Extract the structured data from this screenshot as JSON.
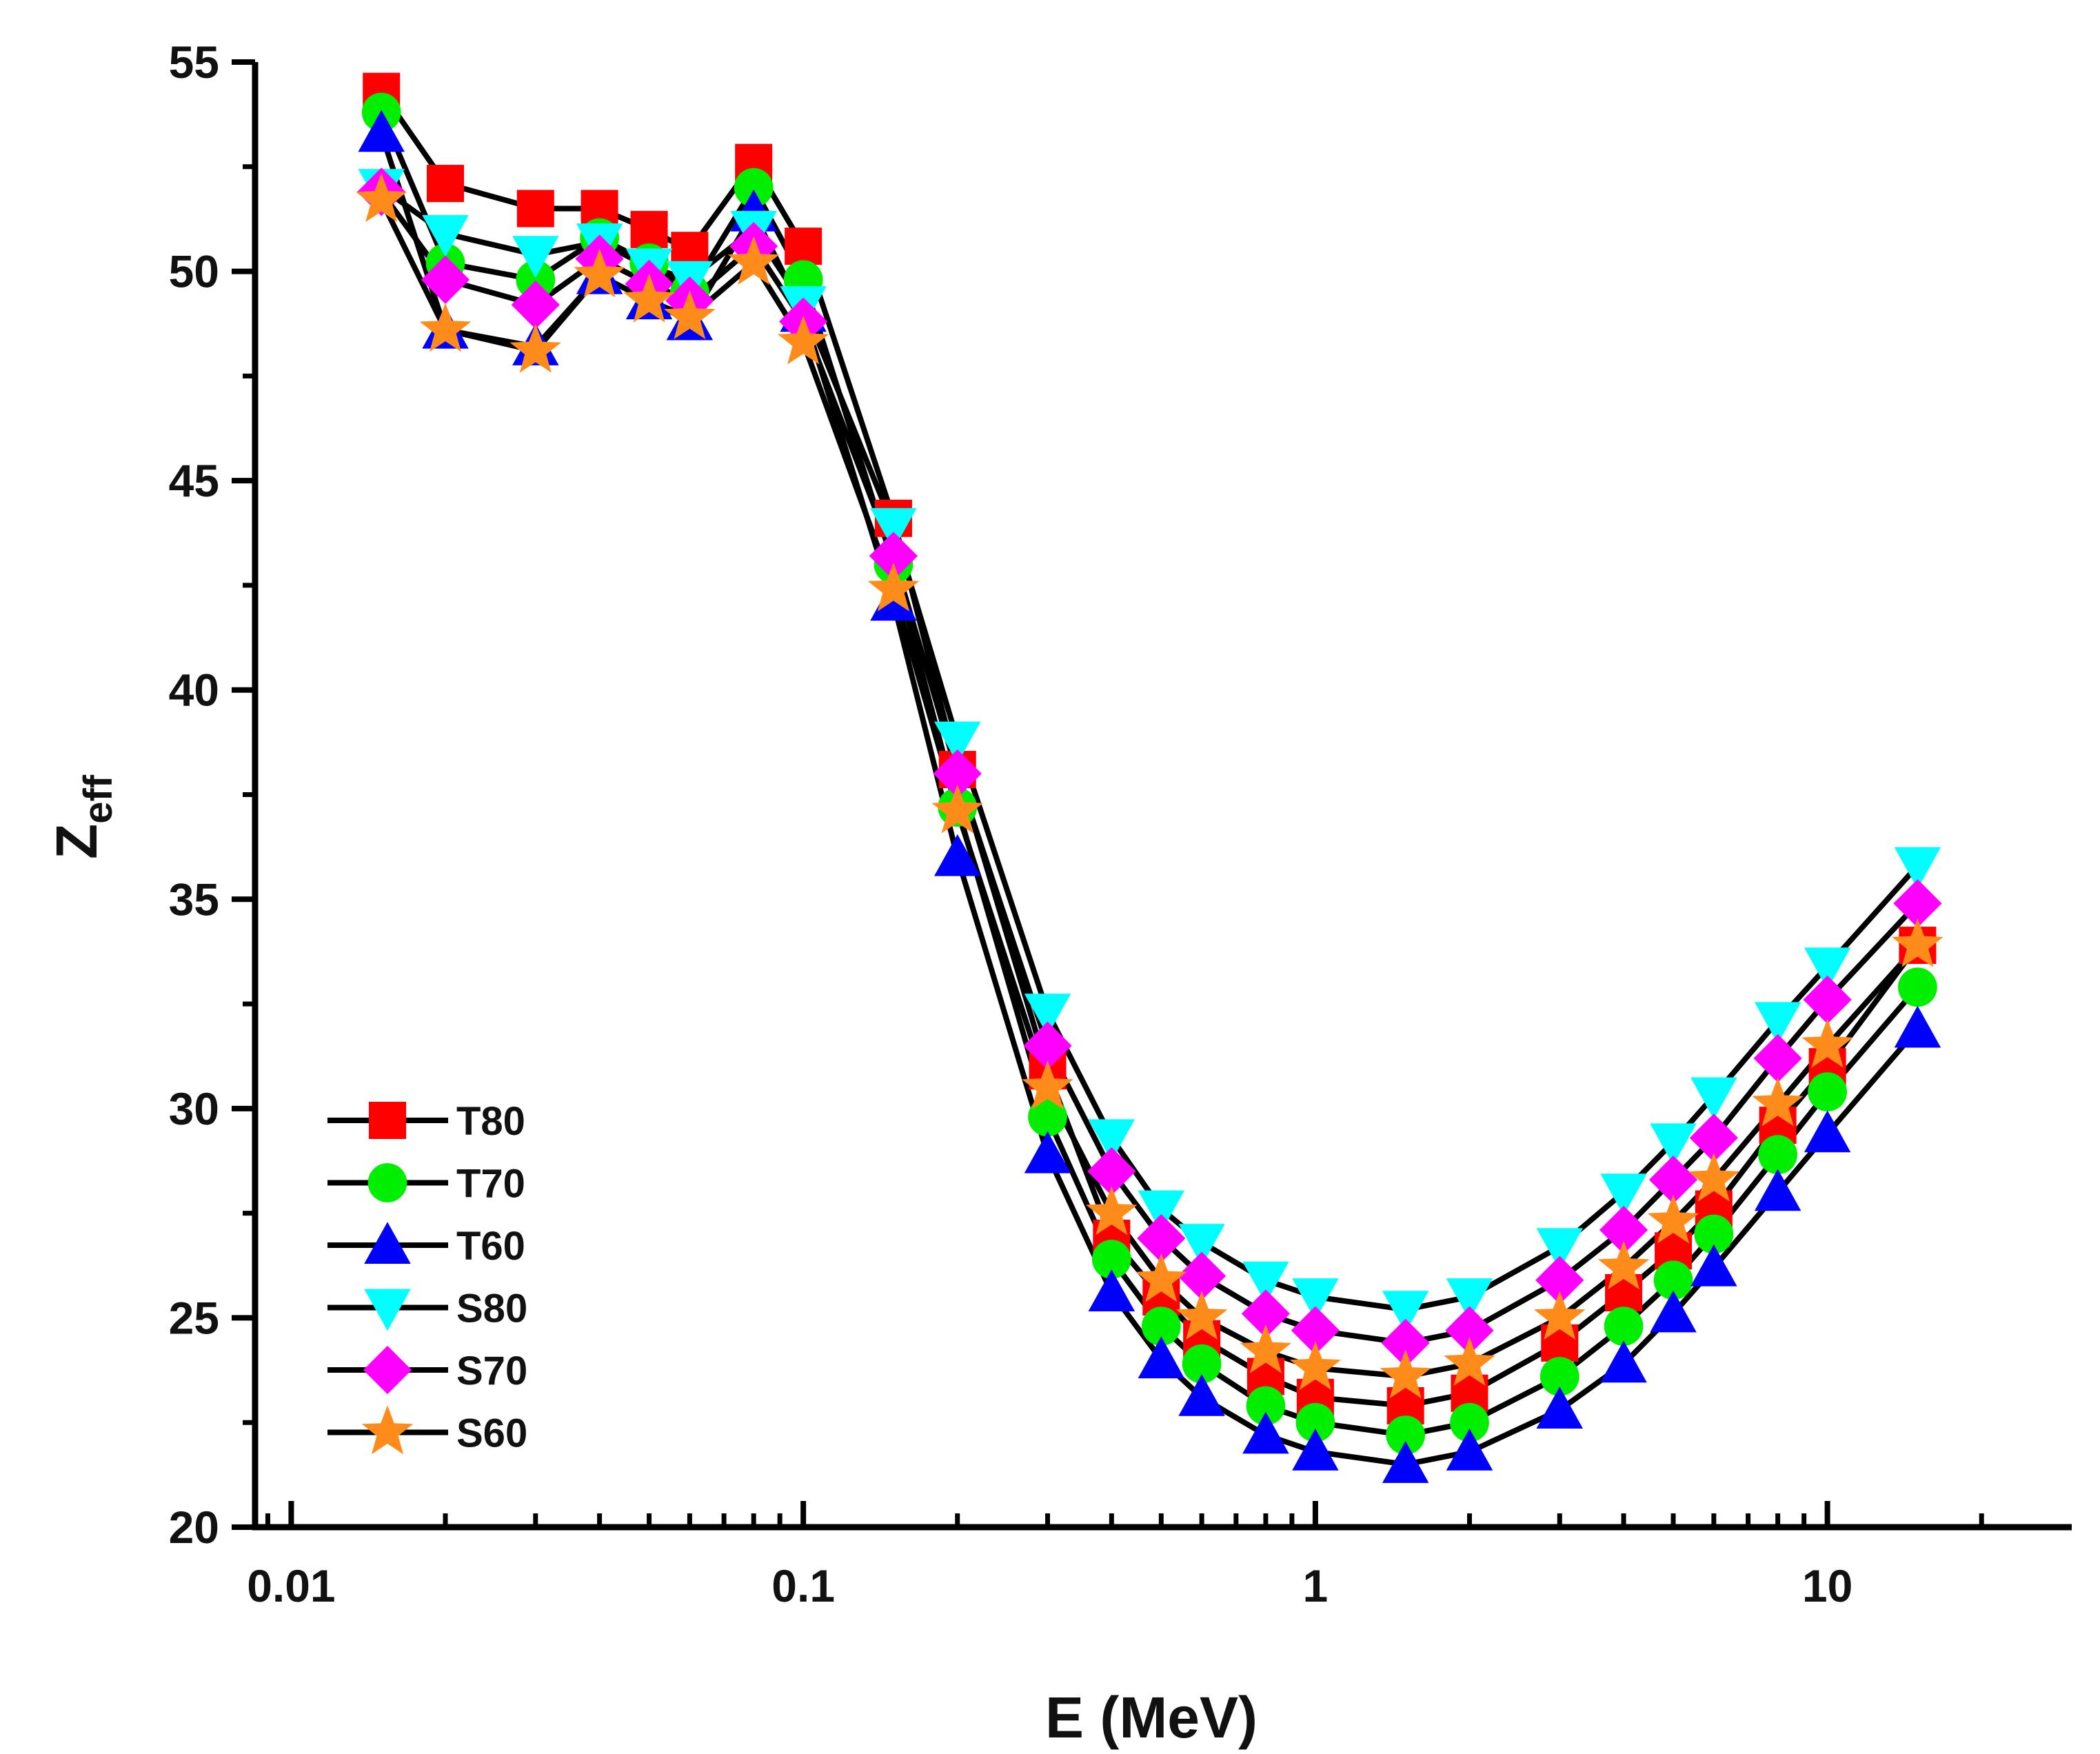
{
  "chart_data": {
    "type": "line",
    "xscale": "log",
    "xlabel": "E (MeV)",
    "ylabel": {
      "main": "Z",
      "sub": "eff"
    },
    "xlim": [
      0.0085,
      30
    ],
    "ylim": [
      20,
      55
    ],
    "xticks": [
      {
        "value": 0.01,
        "label": "0.01"
      },
      {
        "value": 0.1,
        "label": "0.1"
      },
      {
        "value": 1,
        "label": "1"
      },
      {
        "value": 10,
        "label": "10"
      }
    ],
    "yticks": [
      {
        "value": 20,
        "label": "20"
      },
      {
        "value": 25,
        "label": "25"
      },
      {
        "value": 30,
        "label": "30"
      },
      {
        "value": 35,
        "label": "35"
      },
      {
        "value": 40,
        "label": "40"
      },
      {
        "value": 45,
        "label": "45"
      },
      {
        "value": 50,
        "label": "50"
      },
      {
        "value": 55,
        "label": "55"
      }
    ],
    "x": [
      0.015,
      0.02,
      0.03,
      0.04,
      0.05,
      0.06,
      0.08,
      0.1,
      0.15,
      0.2,
      0.3,
      0.4,
      0.5,
      0.6,
      0.8,
      1,
      1.5,
      2,
      3,
      4,
      5,
      6,
      8,
      10,
      15
    ],
    "series": [
      {
        "name": "T80",
        "marker": "square",
        "color": "#ff0000",
        "values": [
          54.3,
          52.1,
          51.5,
          51.5,
          51.0,
          50.5,
          52.6,
          50.6,
          44.1,
          38.1,
          30.9,
          26.9,
          25.5,
          24.5,
          23.6,
          23.1,
          22.9,
          23.2,
          24.4,
          25.6,
          26.6,
          27.6,
          29.6,
          31.0,
          33.9
        ]
      },
      {
        "name": "T70",
        "marker": "circle",
        "color": "#00ee00",
        "values": [
          53.8,
          50.2,
          49.8,
          50.8,
          50.2,
          49.5,
          52.0,
          49.8,
          43.0,
          37.2,
          29.8,
          26.4,
          24.8,
          23.9,
          22.9,
          22.5,
          22.2,
          22.5,
          23.6,
          24.8,
          25.9,
          27.0,
          28.9,
          30.4,
          32.9
        ]
      },
      {
        "name": "T60",
        "marker": "triangle-up",
        "color": "#0000ff",
        "values": [
          53.3,
          48.6,
          48.2,
          49.9,
          49.3,
          48.8,
          51.4,
          49.0,
          42.1,
          36.0,
          28.9,
          25.6,
          24.0,
          23.1,
          22.2,
          21.8,
          21.5,
          21.8,
          22.8,
          23.9,
          25.1,
          26.2,
          28.0,
          29.4,
          31.9
        ]
      },
      {
        "name": "S80",
        "marker": "triangle-down",
        "color": "#00ffff",
        "values": [
          52.0,
          50.9,
          50.4,
          50.7,
          50.1,
          49.8,
          51.0,
          49.2,
          43.9,
          38.8,
          32.3,
          29.3,
          27.6,
          26.8,
          25.9,
          25.5,
          25.2,
          25.5,
          26.7,
          28.0,
          29.2,
          30.3,
          32.1,
          33.4,
          35.8
        ]
      },
      {
        "name": "S70",
        "marker": "diamond",
        "color": "#ff00ff",
        "values": [
          51.9,
          49.8,
          49.2,
          50.3,
          49.7,
          49.3,
          50.6,
          48.8,
          43.2,
          38.0,
          31.5,
          28.5,
          26.9,
          26.0,
          25.1,
          24.7,
          24.4,
          24.7,
          25.9,
          27.1,
          28.3,
          29.3,
          31.2,
          32.6,
          34.9
        ]
      },
      {
        "name": "S60",
        "marker": "star",
        "color": "#ff8c1a",
        "values": [
          51.7,
          48.6,
          48.1,
          49.9,
          49.3,
          48.9,
          50.2,
          48.3,
          42.4,
          37.1,
          30.5,
          27.5,
          25.9,
          25.0,
          24.2,
          23.8,
          23.6,
          23.9,
          25.0,
          26.2,
          27.3,
          28.3,
          30.1,
          31.5,
          33.9
        ]
      }
    ],
    "legend": {
      "position": "bottom-left"
    }
  }
}
